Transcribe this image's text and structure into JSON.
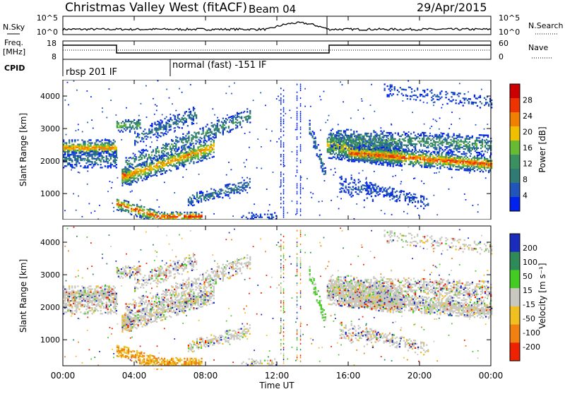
{
  "header": {
    "station": "Christmas Valley West (fitACF)",
    "beam": "Beam 04",
    "date": "29/Apr/2015"
  },
  "noise_panel": {
    "left_label": "N.Sky",
    "right_label": "N.Search",
    "left_ticks": [
      "10^5",
      "10^0"
    ],
    "right_ticks": [
      "10^5",
      "10^0"
    ]
  },
  "freq_panel": {
    "left_label_1": "Freq.",
    "left_label_2": "[MHz]",
    "right_label": "Nave",
    "left_ticks": [
      "18",
      "8"
    ],
    "right_ticks": [
      "60",
      "0"
    ]
  },
  "cpid": {
    "label": "CPID",
    "entries": [
      "rbsp 201 IF",
      "normal (fast) -151 IF"
    ]
  },
  "colors": {
    "power": [
      "#0022ee",
      "#2255bb",
      "#2f7a72",
      "#3a9060",
      "#66bb33",
      "#f0c000",
      "#f08000",
      "#ee3300",
      "#cc0000"
    ],
    "velocity": [
      "#1a2bbd",
      "#2e8b57",
      "#44cc22",
      "#c8c8c0",
      "#f0c020",
      "#f08010",
      "#ee2200"
    ]
  },
  "chart_data": [
    {
      "type": "heatmap",
      "name": "power",
      "xlabel": "",
      "ylabel": "Slant Range [km]",
      "xlim": [
        0,
        24
      ],
      "ylim": [
        200,
        4500
      ],
      "yticks": [
        "1000",
        "2000",
        "3000",
        "4000"
      ],
      "colorbar": {
        "label": "Power [dB]",
        "ticks": [
          "4",
          "8",
          "12",
          "16",
          "20",
          "24",
          "28"
        ]
      }
    },
    {
      "type": "heatmap",
      "name": "velocity",
      "xlabel": "Time UT",
      "ylabel": "Slant Range [km]",
      "xlim": [
        0,
        24
      ],
      "ylim": [
        200,
        4500
      ],
      "xticks": [
        "00:00",
        "04:00",
        "08:00",
        "12:00",
        "16:00",
        "20:00",
        "00:00"
      ],
      "yticks": [
        "1000",
        "2000",
        "3000",
        "4000"
      ],
      "colorbar": {
        "label": "Velocity [m s⁻¹]",
        "ticks": [
          "200",
          "100",
          "50",
          "15",
          "-15",
          "-50",
          "-100",
          "-200"
        ]
      }
    }
  ]
}
